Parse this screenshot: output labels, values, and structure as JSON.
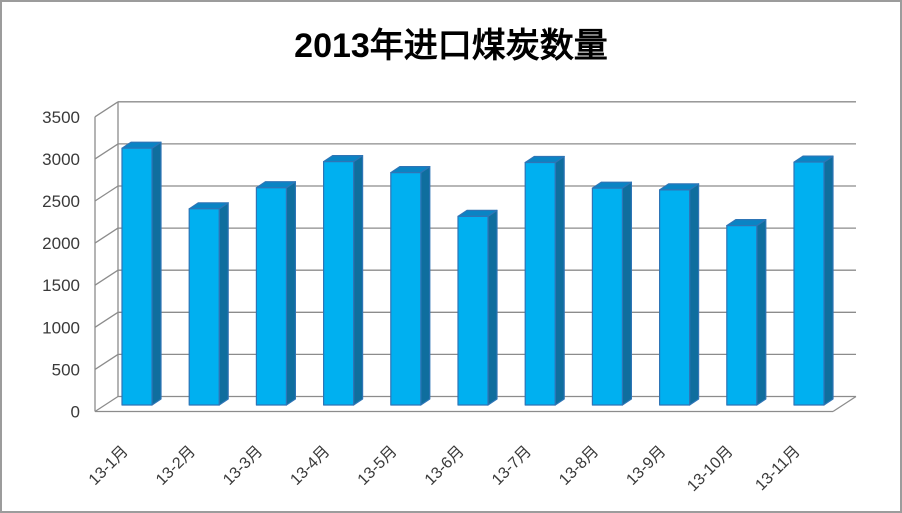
{
  "chart_data": {
    "type": "bar",
    "style": "3d-column",
    "title": "2013年进口煤炭数量",
    "categories": [
      "13-1月",
      "13-2月",
      "13-3月",
      "13-4月",
      "13-5月",
      "13-6月",
      "13-7月",
      "13-8月",
      "13-9月",
      "13-10月",
      "13-11月"
    ],
    "values": [
      3050,
      2330,
      2580,
      2890,
      2760,
      2240,
      2880,
      2575,
      2555,
      2130,
      2885
    ],
    "xlabel": "",
    "ylabel": "",
    "ylim": [
      0,
      3500
    ],
    "ytick_interval": 500,
    "ytick_labels": [
      "0",
      "500",
      "1000",
      "1500",
      "2000",
      "2500",
      "3000",
      "3500"
    ],
    "grid": true,
    "legend": "none",
    "colors": {
      "bar_front": "#00B0F0",
      "bar_top": "#0A84C4",
      "bar_side": "#0F6E9E",
      "bar_edge": "#2E75B6",
      "gridline": "#8C8C8C",
      "axis_text": "#3A3A3A",
      "title_text": "#000000",
      "frame_border": "#9C9C9C",
      "background": "#FFFFFF"
    }
  }
}
